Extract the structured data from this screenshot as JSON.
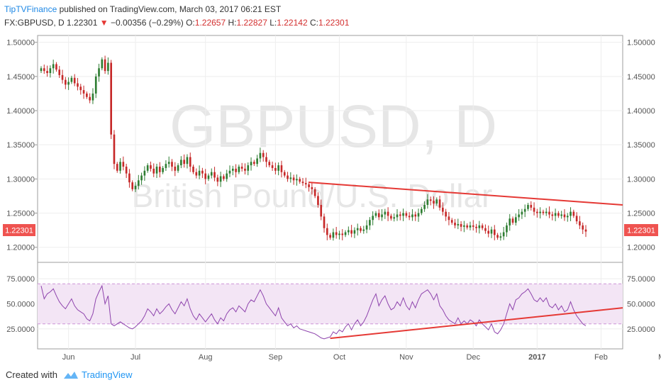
{
  "header": {
    "publisher": "TipTVFinance",
    "published_text": "published on TradingView.com, March 03, 2017 06:21 EST",
    "symbol": "FX:GBPUSD, D",
    "last": "1.22301",
    "arrow": "▼",
    "change": "−0.00356 (−0.29%)",
    "o_label": "O:",
    "o": "1.22657",
    "h_label": "H:",
    "h": "1.22827",
    "l_label": "L:",
    "l": "1.22142",
    "c_label": "C:",
    "c": "1.22301"
  },
  "footer": {
    "created": "Created with",
    "brand": "TradingView"
  },
  "colors": {
    "up": "#2e7d32",
    "down": "#c62828",
    "trend": "#e53935",
    "rsi": "#8e44ad",
    "rsi_band": "#f3e5f5",
    "badge": "#ef5350"
  },
  "chart_data": [
    {
      "type": "candlestick",
      "title": "",
      "watermark": [
        "GBPUSD, D",
        "British Pound/U.S. Dollar"
      ],
      "price_badge": "1.22301",
      "y_ticks": [
        "1.50000",
        "1.45000",
        "1.40000",
        "1.35000",
        "1.30000",
        "1.25000",
        "1.20000"
      ],
      "ylim": [
        1.18,
        1.51
      ],
      "x_ticks": [
        "Jun",
        "Jul",
        "Aug",
        "Sep",
        "Oct",
        "Nov",
        "Dec",
        "2017",
        "Feb",
        "Mar"
      ],
      "x_tick_index": [
        9,
        31,
        54,
        77,
        98,
        120,
        142,
        163,
        184,
        205
      ],
      "close": [
        1.462,
        1.458,
        1.455,
        1.462,
        1.468,
        1.46,
        1.452,
        1.445,
        1.438,
        1.442,
        1.448,
        1.44,
        1.435,
        1.43,
        1.425,
        1.42,
        1.415,
        1.425,
        1.45,
        1.462,
        1.475,
        1.458,
        1.47,
        1.365,
        1.322,
        1.312,
        1.325,
        1.318,
        1.308,
        1.295,
        1.285,
        1.29,
        1.298,
        1.305,
        1.312,
        1.32,
        1.315,
        1.308,
        1.318,
        1.31,
        1.316,
        1.322,
        1.325,
        1.318,
        1.312,
        1.32,
        1.328,
        1.322,
        1.332,
        1.318,
        1.31,
        1.305,
        1.312,
        1.308,
        1.3,
        1.305,
        1.31,
        1.302,
        1.296,
        1.304,
        1.3,
        1.308,
        1.312,
        1.315,
        1.31,
        1.318,
        1.315,
        1.312,
        1.32,
        1.325,
        1.322,
        1.33,
        1.338,
        1.332,
        1.325,
        1.32,
        1.316,
        1.312,
        1.32,
        1.31,
        1.305,
        1.3,
        1.302,
        1.298,
        1.3,
        1.296,
        1.294,
        1.292,
        1.288,
        1.285,
        1.275,
        1.262,
        1.245,
        1.228,
        1.218,
        1.214,
        1.222,
        1.218,
        1.22,
        1.218,
        1.222,
        1.225,
        1.22,
        1.225,
        1.228,
        1.224,
        1.226,
        1.232,
        1.24,
        1.246,
        1.25,
        1.244,
        1.248,
        1.252,
        1.246,
        1.242,
        1.244,
        1.248,
        1.246,
        1.25,
        1.246,
        1.244,
        1.248,
        1.245,
        1.25,
        1.256,
        1.262,
        1.27,
        1.268,
        1.264,
        1.27,
        1.258,
        1.252,
        1.245,
        1.24,
        1.236,
        1.232,
        1.234,
        1.23,
        1.232,
        1.229,
        1.232,
        1.23,
        1.228,
        1.232,
        1.228,
        1.224,
        1.22,
        1.226,
        1.218,
        1.214,
        1.216,
        1.222,
        1.232,
        1.242,
        1.236,
        1.244,
        1.248,
        1.252,
        1.256,
        1.262,
        1.258,
        1.252,
        1.25,
        1.252,
        1.25,
        1.252,
        1.248,
        1.246,
        1.25,
        1.246,
        1.248,
        1.244,
        1.246,
        1.252,
        1.246,
        1.238,
        1.232,
        1.226,
        1.22301
      ]
    },
    {
      "type": "line",
      "title": "",
      "series": [
        {
          "values": [
            68,
            55,
            60,
            62,
            65,
            58,
            52,
            48,
            45,
            50,
            55,
            48,
            44,
            42,
            40,
            35,
            33,
            40,
            55,
            62,
            68,
            50,
            58,
            30,
            28,
            30,
            32,
            30,
            28,
            26,
            25,
            27,
            30,
            33,
            38,
            45,
            42,
            38,
            45,
            40,
            43,
            47,
            50,
            44,
            40,
            46,
            52,
            48,
            55,
            45,
            38,
            34,
            40,
            36,
            32,
            36,
            40,
            34,
            30,
            36,
            33,
            40,
            44,
            46,
            42,
            48,
            45,
            42,
            50,
            54,
            52,
            58,
            64,
            58,
            50,
            46,
            42,
            38,
            46,
            36,
            32,
            28,
            30,
            26,
            28,
            25,
            24,
            23,
            22,
            21,
            20,
            18,
            16,
            15,
            16,
            17,
            22,
            20,
            24,
            22,
            27,
            30,
            24,
            30,
            34,
            28,
            32,
            38,
            46,
            54,
            60,
            48,
            54,
            58,
            50,
            44,
            46,
            52,
            48,
            56,
            48,
            44,
            52,
            46,
            54,
            60,
            62,
            64,
            60,
            54,
            60,
            48,
            44,
            38,
            34,
            32,
            30,
            36,
            30,
            33,
            30,
            34,
            32,
            28,
            34,
            30,
            27,
            24,
            30,
            22,
            20,
            24,
            30,
            40,
            50,
            44,
            54,
            56,
            60,
            62,
            65,
            60,
            54,
            52,
            56,
            52,
            56,
            48,
            46,
            50,
            44,
            48,
            42,
            44,
            52,
            44,
            38,
            34,
            30,
            28
          ]
        }
      ],
      "y_ticks": [
        "75.0000",
        "50.0000",
        "25.0000"
      ],
      "ylim": [
        5,
        90
      ],
      "band": [
        30,
        70
      ]
    }
  ]
}
